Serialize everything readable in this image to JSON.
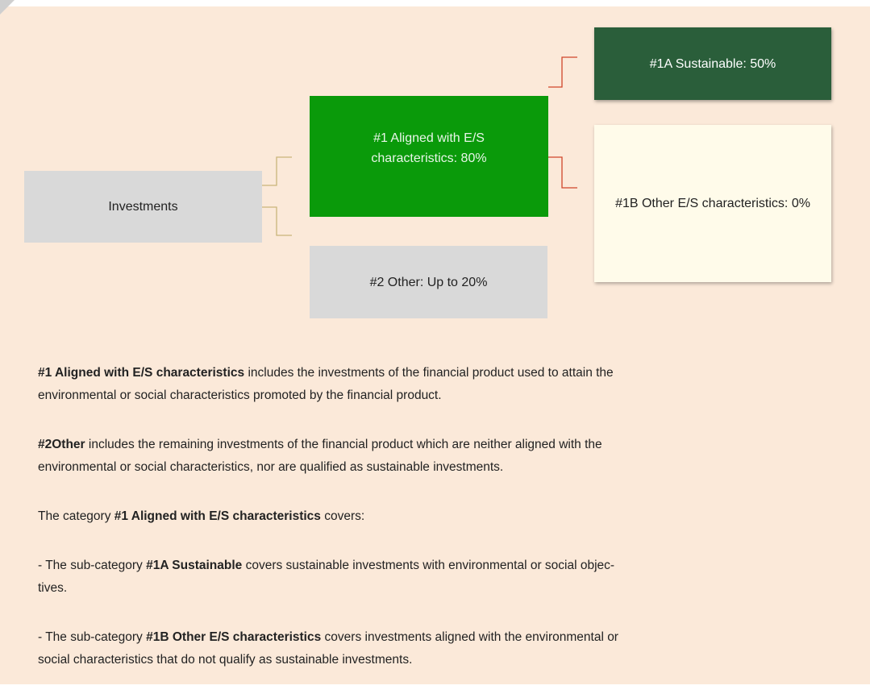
{
  "nodes": [
    {
      "label": "Investments"
    },
    {
      "label": "#1 Aligned with E/S characteristics: 80%"
    },
    {
      "label": "#2 Other: Up to 20%"
    },
    {
      "label": "#1A Sustainable: 50%"
    },
    {
      "label": "#1B Other E/S characteristics: 0%"
    }
  ],
  "paragraphs": [
    {
      "lines": [
        [
          {
            "text": "#1 Aligned with E/S characteristics",
            "bold": true
          },
          {
            "text": " includes the investments of the financial product used to attain the",
            "bold": false
          }
        ],
        [
          {
            "text": "environmental or social characteristics promoted by the financial product.",
            "bold": false
          }
        ]
      ]
    },
    {
      "lines": [
        [
          {
            "text": "#2Other",
            "bold": true
          },
          {
            "text": " includes the remaining investments of the financial product which are neither aligned with the",
            "bold": false
          }
        ],
        [
          {
            "text": "environmental or social characteristics, nor are qualified as sustainable investments.",
            "bold": false
          }
        ]
      ]
    },
    {
      "lines": [
        [
          {
            "text": "The category ",
            "bold": false
          },
          {
            "text": "#1 Aligned with E/S characteristics",
            "bold": true
          },
          {
            "text": " covers:",
            "bold": false
          }
        ]
      ]
    },
    {
      "lines": [
        [
          {
            "text": "- The sub-category ",
            "bold": false
          },
          {
            "text": "#1A Sustainable",
            "bold": true
          },
          {
            "text": " covers sustainable investments with environmental or social objec-",
            "bold": false
          }
        ],
        [
          {
            "text": "tives.",
            "bold": false
          }
        ]
      ]
    },
    {
      "lines": [
        [
          {
            "text": "- The sub-category ",
            "bold": false
          },
          {
            "text": "#1B Other E/S characteristics",
            "bold": true
          },
          {
            "text": " covers investments aligned with the environmental or",
            "bold": false
          }
        ],
        [
          {
            "text": "social characteristics that do not qualify as sustainable investments.",
            "bold": false
          }
        ]
      ]
    }
  ]
}
